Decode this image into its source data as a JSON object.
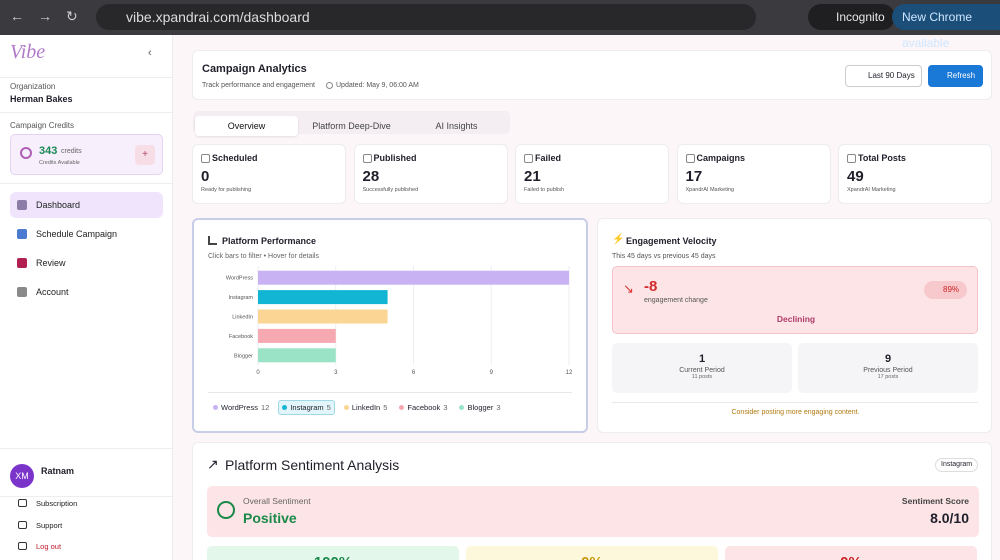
{
  "browser": {
    "url": "vibe.xpandrai.com/dashboard",
    "incognito": "Incognito",
    "update": "New Chrome available"
  },
  "sidebar": {
    "logo": "Vibe",
    "org_label": "Organization",
    "org_name": "Herman Bakes",
    "credits_label": "Campaign Credits",
    "credits": "343",
    "credits_unit": "credits",
    "credits_sub": "Credits Available",
    "nav": [
      "Dashboard",
      "Schedule Campaign",
      "Review",
      "Account"
    ],
    "user_initials": "XM",
    "user_name": "Ratnam",
    "links": [
      "Subscription",
      "Support",
      "Log out"
    ]
  },
  "header": {
    "title": "Campaign Analytics",
    "subtitle": "Track performance and engagement",
    "updated": "Updated: May 9, 06:00 AM",
    "range": "Last 90 Days",
    "refresh": "Refresh"
  },
  "tabs": [
    "Overview",
    "Platform Deep-Dive",
    "AI Insights"
  ],
  "stats": [
    {
      "label": "Scheduled",
      "value": 0,
      "sub": "Ready for publishing"
    },
    {
      "label": "Published",
      "value": 28,
      "sub": "Successfully published"
    },
    {
      "label": "Failed",
      "value": 21,
      "sub": "Failed to publish"
    },
    {
      "label": "Campaigns",
      "value": 17,
      "sub": "XpandrAI Marketing"
    },
    {
      "label": "Total Posts",
      "value": 49,
      "sub": "XpandrAI Marketing"
    }
  ],
  "chart_data": {
    "type": "bar",
    "orientation": "horizontal",
    "title": "Platform Performance",
    "subtitle": "Click bars to filter • Hover for details",
    "categories": [
      "WordPress",
      "Instagram",
      "LinkedIn",
      "Facebook",
      "Blogger"
    ],
    "values": [
      12,
      5,
      5,
      3,
      3
    ],
    "colors": [
      "#c8b2f4",
      "#13b5d4",
      "#fbd594",
      "#f6a9b1",
      "#9ae3c6"
    ],
    "xlim": [
      0,
      12
    ],
    "xticks": [
      0,
      3,
      6,
      9,
      12
    ],
    "grid": true,
    "selected": "Instagram"
  },
  "velocity": {
    "title": "Engagement Velocity",
    "period": "This 45 days vs previous 45 days",
    "change": "-8",
    "change_label": "engagement change",
    "percent": "89%",
    "status": "Declining",
    "current_value": "1",
    "current_label": "Current Period",
    "current_sub": "11 posts",
    "previous_value": "9",
    "previous_label": "Previous Period",
    "previous_sub": "17 posts",
    "tip": "Consider posting more engaging content."
  },
  "sentiment": {
    "title": "Platform Sentiment Analysis",
    "platform": "Instagram",
    "overall_label": "Overall Sentiment",
    "overall": "Positive",
    "score_label": "Sentiment Score",
    "score": "8.0/10",
    "breakdown": [
      "100%",
      "0%",
      "0%"
    ]
  }
}
